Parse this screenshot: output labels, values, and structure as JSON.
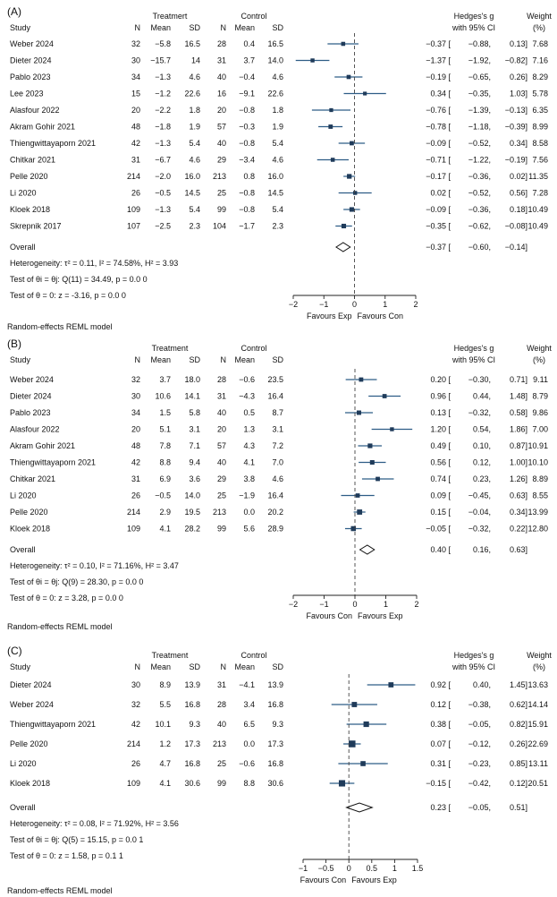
{
  "colors": {
    "marker": "#1f3b5a",
    "ci_line": "#2e5d86",
    "axis": "#222222",
    "null_line": "#444444"
  },
  "headers": {
    "treatment": "Treatment",
    "treatment_A": "Treatmert",
    "control": "Control",
    "study": "Study",
    "n": "N",
    "mean": "Mean",
    "sd": "SD",
    "effect_line1": "Hedges's g",
    "effect_line2": "with 95% CI",
    "weight_line1": "Weight",
    "weight_line2": "(%)"
  },
  "chart_data": [
    {
      "panel_label": "(A)",
      "type": "forest",
      "treatment_label": "Treatmert",
      "xlim": [
        -2,
        2
      ],
      "ticks": [
        -2,
        -1,
        0,
        1,
        2
      ],
      "tick_labels": [
        "-2",
        "-1",
        "0",
        "1",
        "2"
      ],
      "favours_left": "Favours Exp",
      "favours_right": "Favours Con",
      "model_note": "Random-effects REML model",
      "studies": [
        {
          "study": "Weber 2024",
          "n1": "32",
          "mean1": "-5.8",
          "sd1": "16.5",
          "n2": "28",
          "mean2": "0.4",
          "sd2": "16.5",
          "g": -0.37,
          "lo": -0.88,
          "hi": 0.13,
          "g_text": "-0.37",
          "lo_text": "-0.88,",
          "hi_text": "0.13]",
          "weight": "7.68"
        },
        {
          "study": "Dieter 2024",
          "n1": "30",
          "mean1": "-15.7",
          "sd1": "14",
          "n2": "31",
          "mean2": "3.7",
          "sd2": "14.0",
          "g": -1.37,
          "lo": -1.92,
          "hi": -0.82,
          "g_text": "-1.37",
          "lo_text": "-1.92,",
          "hi_text": "-0.82]",
          "weight": "7.16"
        },
        {
          "study": "Pablo 2023",
          "n1": "34",
          "mean1": "-1.3",
          "sd1": "4.6",
          "n2": "40",
          "mean2": "-0.4",
          "sd2": "4.6",
          "g": -0.19,
          "lo": -0.65,
          "hi": 0.26,
          "g_text": "-0.19",
          "lo_text": "-0.65,",
          "hi_text": "0.26]",
          "weight": "8.29"
        },
        {
          "study": "Lee 2023",
          "n1": "15",
          "mean1": "-1.2",
          "sd1": "22.6",
          "n2": "16",
          "mean2": "-9.1",
          "sd2": "22.6",
          "g": 0.34,
          "lo": -0.35,
          "hi": 1.03,
          "g_text": "0.34",
          "lo_text": "-0.35,",
          "hi_text": "1.03]",
          "weight": "5.78"
        },
        {
          "study": "Alasfour 2022",
          "n1": "20",
          "mean1": "-2.2",
          "sd1": "1.8",
          "n2": "20",
          "mean2": "-0.8",
          "sd2": "1.8",
          "g": -0.76,
          "lo": -1.39,
          "hi": -0.13,
          "g_text": "-0.76",
          "lo_text": "-1.39,",
          "hi_text": "-0.13]",
          "weight": "6.35"
        },
        {
          "study": "Akram Gohir 2021",
          "n1": "48",
          "mean1": "-1.8",
          "sd1": "1.9",
          "n2": "57",
          "mean2": "-0.3",
          "sd2": "1.9",
          "g": -0.78,
          "lo": -1.18,
          "hi": -0.39,
          "g_text": "-0.78",
          "lo_text": "-1.18,",
          "hi_text": "-0.39]",
          "weight": "8.99"
        },
        {
          "study": "Thiengwittayaporn 2021",
          "n1": "42",
          "mean1": "-1.3",
          "sd1": "5.4",
          "n2": "40",
          "mean2": "-0.8",
          "sd2": "5.4",
          "g": -0.09,
          "lo": -0.52,
          "hi": 0.34,
          "g_text": "-0.09",
          "lo_text": "-0.52,",
          "hi_text": "0.34]",
          "weight": "8.58"
        },
        {
          "study": "Chitkar 2021",
          "n1": "31",
          "mean1": "-6.7",
          "sd1": "4.6",
          "n2": "29",
          "mean2": "-3.4",
          "sd2": "4.6",
          "g": -0.71,
          "lo": -1.22,
          "hi": -0.19,
          "g_text": "-0.71",
          "lo_text": "-1.22,",
          "hi_text": "-0.19]",
          "weight": "7.56"
        },
        {
          "study": "Pelle 2020",
          "n1": "214",
          "mean1": "-2.0",
          "sd1": "16.0",
          "n2": "213",
          "mean2": "0.8",
          "sd2": "16.0",
          "g": -0.17,
          "lo": -0.36,
          "hi": 0.02,
          "g_text": "-0.17",
          "lo_text": "-0.36,",
          "hi_text": "0.02]",
          "weight": "11.35"
        },
        {
          "study": "Li 2020",
          "n1": "26",
          "mean1": "-0.5",
          "sd1": "14.5",
          "n2": "25",
          "mean2": "-0.8",
          "sd2": "14.5",
          "g": 0.02,
          "lo": -0.52,
          "hi": 0.56,
          "g_text": "0.02",
          "lo_text": "-0.52,",
          "hi_text": "0.56]",
          "weight": "7.28"
        },
        {
          "study": "Kloek 2018",
          "n1": "109",
          "mean1": "-1.3",
          "sd1": "5.4",
          "n2": "99",
          "mean2": "-0.8",
          "sd2": "5.4",
          "g": -0.09,
          "lo": -0.36,
          "hi": 0.18,
          "g_text": "-0.09",
          "lo_text": "-0.36,",
          "hi_text": "0.18]",
          "weight": "10.49"
        },
        {
          "study": "Skrepnik 2017",
          "n1": "107",
          "mean1": "-2.5",
          "sd1": "2.3",
          "n2": "104",
          "mean2": "-1.7",
          "sd2": "2.3",
          "g": -0.35,
          "lo": -0.62,
          "hi": -0.08,
          "g_text": "-0.35",
          "lo_text": "-0.62,",
          "hi_text": "-0.08]",
          "weight": "10.49"
        }
      ],
      "overall": {
        "label": "Overall",
        "g": -0.37,
        "lo": -0.6,
        "hi": -0.14,
        "g_text": "-0.37",
        "lo_text": "-0.60,",
        "hi_text": "-0.14]"
      },
      "stats_lines": [
        "Heterogeneity: τ² = 0.11, I² = 74.58%, H² = 3.93",
        "Test of θi = θj: Q(11) = 34.49, p = 0.0 0",
        "Test of θ = 0: z = -3.16, p = 0.0 0"
      ]
    },
    {
      "panel_label": "(B)",
      "type": "forest",
      "treatment_label": "Treatment",
      "xlim": [
        -2,
        2
      ],
      "ticks": [
        -2,
        -1,
        0,
        1,
        2
      ],
      "tick_labels": [
        "-2",
        "-1",
        "0",
        "1",
        "2"
      ],
      "favours_left": "Favours Con",
      "favours_right": "Favours Exp",
      "model_note": "Random-effects REML model",
      "studies": [
        {
          "study": "Weber 2024",
          "n1": "32",
          "mean1": "3.7",
          "sd1": "18.0",
          "n2": "28",
          "mean2": "-0.6",
          "sd2": "23.5",
          "g": 0.2,
          "lo": -0.3,
          "hi": 0.71,
          "g_text": "0.20",
          "lo_text": "-0.30,",
          "hi_text": "0.71]",
          "weight": "9.11"
        },
        {
          "study": "Dieter 2024",
          "n1": "30",
          "mean1": "10.6",
          "sd1": "14.1",
          "n2": "31",
          "mean2": "-4.3",
          "sd2": "16.4",
          "g": 0.96,
          "lo": 0.44,
          "hi": 1.48,
          "g_text": "0.96",
          "lo_text": "0.44,",
          "hi_text": "1.48]",
          "weight": "8.79"
        },
        {
          "study": "Pablo 2023",
          "n1": "34",
          "mean1": "1.5",
          "sd1": "5.8",
          "n2": "40",
          "mean2": "0.5",
          "sd2": "8.7",
          "g": 0.13,
          "lo": -0.32,
          "hi": 0.58,
          "g_text": "0.13",
          "lo_text": "-0.32,",
          "hi_text": "0.58]",
          "weight": "9.86"
        },
        {
          "study": "Alasfour 2022",
          "n1": "20",
          "mean1": "5.1",
          "sd1": "3.1",
          "n2": "20",
          "mean2": "1.3",
          "sd2": "3.1",
          "g": 1.2,
          "lo": 0.54,
          "hi": 1.86,
          "g_text": "1.20",
          "lo_text": "0.54,",
          "hi_text": "1.86]",
          "weight": "7.00"
        },
        {
          "study": "Akram Gohir 2021",
          "n1": "48",
          "mean1": "7.8",
          "sd1": "7.1",
          "n2": "57",
          "mean2": "4.3",
          "sd2": "7.2",
          "g": 0.49,
          "lo": 0.1,
          "hi": 0.87,
          "g_text": "0.49",
          "lo_text": "0.10,",
          "hi_text": "0.87]",
          "weight": "10.91"
        },
        {
          "study": "Thiengwittayaporn 2021",
          "n1": "42",
          "mean1": "8.8",
          "sd1": "9.4",
          "n2": "40",
          "mean2": "4.1",
          "sd2": "7.0",
          "g": 0.56,
          "lo": 0.12,
          "hi": 1.0,
          "g_text": "0.56",
          "lo_text": "0.12,",
          "hi_text": "1.00]",
          "weight": "10.10"
        },
        {
          "study": "Chitkar 2021",
          "n1": "31",
          "mean1": "6.9",
          "sd1": "3.6",
          "n2": "29",
          "mean2": "3.8",
          "sd2": "4.6",
          "g": 0.74,
          "lo": 0.23,
          "hi": 1.26,
          "g_text": "0.74",
          "lo_text": "0.23,",
          "hi_text": "1.26]",
          "weight": "8.89"
        },
        {
          "study": "Li 2020",
          "n1": "26",
          "mean1": "-0.5",
          "sd1": "14.0",
          "n2": "25",
          "mean2": "-1.9",
          "sd2": "16.4",
          "g": 0.09,
          "lo": -0.45,
          "hi": 0.63,
          "g_text": "0.09",
          "lo_text": "-0.45,",
          "hi_text": "0.63]",
          "weight": "8.55"
        },
        {
          "study": "Pelle 2020",
          "n1": "214",
          "mean1": "2.9",
          "sd1": "19.5",
          "n2": "213",
          "mean2": "0.0",
          "sd2": "20.2",
          "g": 0.15,
          "lo": -0.04,
          "hi": 0.34,
          "g_text": "0.15",
          "lo_text": "-0.04,",
          "hi_text": "0.34]",
          "weight": "13.99"
        },
        {
          "study": "Kloek 2018",
          "n1": "109",
          "mean1": "4.1",
          "sd1": "28.2",
          "n2": "99",
          "mean2": "5.6",
          "sd2": "28.9",
          "g": -0.05,
          "lo": -0.32,
          "hi": 0.22,
          "g_text": "-0.05",
          "lo_text": "-0.32,",
          "hi_text": "0.22]",
          "weight": "12.80"
        }
      ],
      "overall": {
        "label": "Overall",
        "g": 0.4,
        "lo": 0.16,
        "hi": 0.63,
        "g_text": "0.40",
        "lo_text": "0.16,",
        "hi_text": "0.63]"
      },
      "stats_lines": [
        "Heterogeneity: τ² = 0.10, I² = 71.16%, H² = 3.47",
        "Test of θi = θj: Q(9) = 28.30, p = 0.0 0",
        "Test of θ = 0: z = 3.28, p = 0.0 0"
      ]
    },
    {
      "panel_label": "(C)",
      "type": "forest",
      "treatment_label": "Treatment",
      "xlim": [
        -1,
        1.5
      ],
      "ticks": [
        -1,
        -0.5,
        0,
        0.5,
        1,
        1.5
      ],
      "tick_labels": [
        "-1",
        "-0.5",
        "0",
        "0.5",
        "1",
        "1.5"
      ],
      "favours_left": "Favours Con",
      "favours_right": "Favours Exp",
      "model_note": "Random-effects REML model",
      "studies": [
        {
          "study": "Dieter 2024",
          "n1": "30",
          "mean1": "8.9",
          "sd1": "13.9",
          "n2": "31",
          "mean2": "-4.1",
          "sd2": "13.9",
          "g": 0.92,
          "lo": 0.4,
          "hi": 1.45,
          "g_text": "0.92",
          "lo_text": "0.40,",
          "hi_text": "1.45]",
          "weight": "13.63"
        },
        {
          "study": "Weber 2024",
          "n1": "32",
          "mean1": "5.5",
          "sd1": "16.8",
          "n2": "28",
          "mean2": "3.4",
          "sd2": "16.8",
          "g": 0.12,
          "lo": -0.38,
          "hi": 0.62,
          "g_text": "0.12",
          "lo_text": "-0.38,",
          "hi_text": "0.62]",
          "weight": "14.14"
        },
        {
          "study": "Thiengwittayaporn 2021",
          "n1": "42",
          "mean1": "10.1",
          "sd1": "9.3",
          "n2": "40",
          "mean2": "6.5",
          "sd2": "9.3",
          "g": 0.38,
          "lo": -0.05,
          "hi": 0.82,
          "g_text": "0.38",
          "lo_text": "-0.05,",
          "hi_text": "0.82]",
          "weight": "15.91"
        },
        {
          "study": "Pelle 2020",
          "n1": "214",
          "mean1": "1.2",
          "sd1": "17.3",
          "n2": "213",
          "mean2": "0.0",
          "sd2": "17.3",
          "g": 0.07,
          "lo": -0.12,
          "hi": 0.26,
          "g_text": "0.07",
          "lo_text": "-0.12,",
          "hi_text": "0.26]",
          "weight": "22.69"
        },
        {
          "study": "Li 2020",
          "n1": "26",
          "mean1": "4.7",
          "sd1": "16.8",
          "n2": "25",
          "mean2": "-0.6",
          "sd2": "16.8",
          "g": 0.31,
          "lo": -0.23,
          "hi": 0.85,
          "g_text": "0.31",
          "lo_text": "-0.23,",
          "hi_text": "0.85]",
          "weight": "13.11"
        },
        {
          "study": "Kloek 2018",
          "n1": "109",
          "mean1": "4.1",
          "sd1": "30.6",
          "n2": "99",
          "mean2": "8.8",
          "sd2": "30.6",
          "g": -0.15,
          "lo": -0.42,
          "hi": 0.12,
          "g_text": "-0.15",
          "lo_text": "-0.42,",
          "hi_text": "0.12]",
          "weight": "20.51"
        }
      ],
      "overall": {
        "label": "Overall",
        "g": 0.23,
        "lo": -0.05,
        "hi": 0.51,
        "g_text": "0.23",
        "lo_text": "-0.05,",
        "hi_text": "0.51]"
      },
      "stats_lines": [
        "Heterogeneity: τ² = 0.08, I² = 71.92%, H² = 3.56",
        "Test of θi = θj: Q(5) = 15.15, p = 0.0 1",
        "Test of θ = 0: z = 1.58, p = 0.1 1"
      ]
    }
  ]
}
